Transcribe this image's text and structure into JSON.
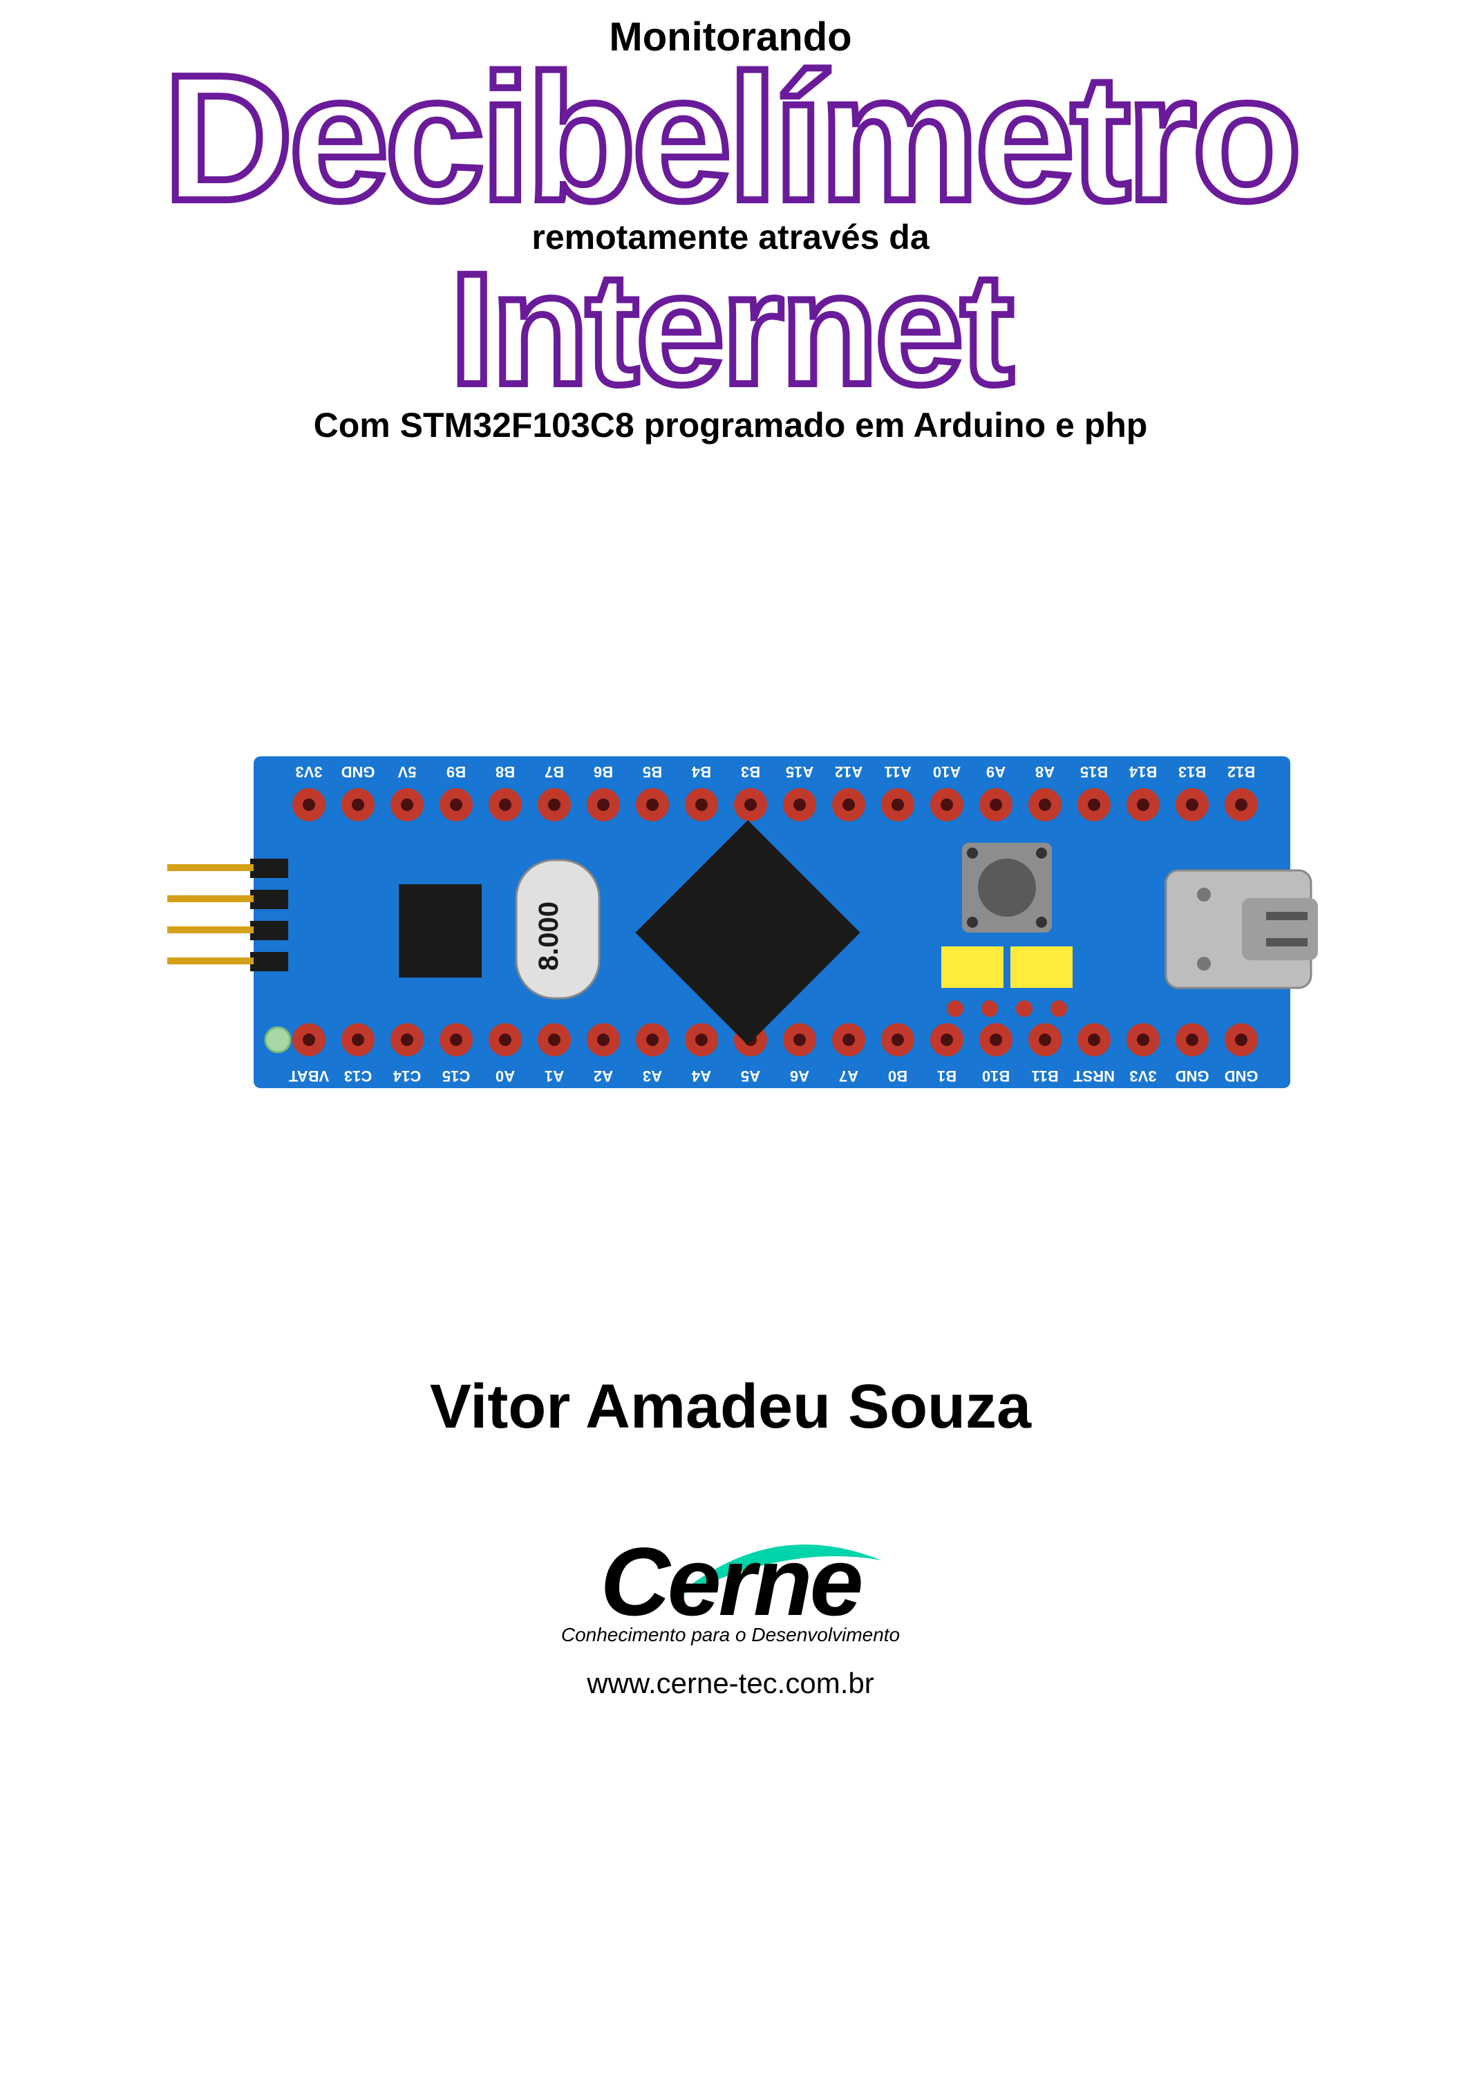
{
  "title": {
    "line1": "Monitorando",
    "word1": "Decibelímetro",
    "line3": "remotamente através da",
    "word2": "Internet",
    "line5": "Com STM32F103C8 programado em Arduino e php"
  },
  "board": {
    "pcb_color": "#1976d2",
    "silk_color": "#ffffff",
    "pad_color": "#c0392b",
    "chip_color": "#1a1a1a",
    "button_body": "#8d8d8d",
    "button_top": "#5a5a5a",
    "jumper_yellow": "#ffeb3b",
    "usb_color": "#bdbdbd",
    "header_pin": "#d4a017",
    "header_body": "#1a1a1a",
    "crystal_body": "#e0e0e0",
    "crystal_text": "8.000",
    "hole_color": "#a8d8a8",
    "pins_top": [
      "3V3",
      "GND",
      "5V",
      "B9",
      "B8",
      "B7",
      "B6",
      "B5",
      "B4",
      "B3",
      "A15",
      "A12",
      "A11",
      "A10",
      "A9",
      "A8",
      "B15",
      "B14",
      "B13",
      "B12"
    ],
    "pins_bottom": [
      "VBAT",
      "C13",
      "C14",
      "C15",
      "A0",
      "A1",
      "A2",
      "A3",
      "A4",
      "A5",
      "A6",
      "A7",
      "B0",
      "B1",
      "B10",
      "B11",
      "NRST",
      "3V3",
      "GND",
      "GND"
    ]
  },
  "author": "Vitor Amadeu Souza",
  "logo": {
    "name": "Cerne",
    "tagline": "Conhecimento para o Desenvolvimento",
    "url": "www.cerne-tec.com.br",
    "swoosh_color": "#00d4aa"
  },
  "colors": {
    "outline_purple": "#6a1b9a",
    "text_black": "#000000",
    "bg_white": "#ffffff"
  }
}
